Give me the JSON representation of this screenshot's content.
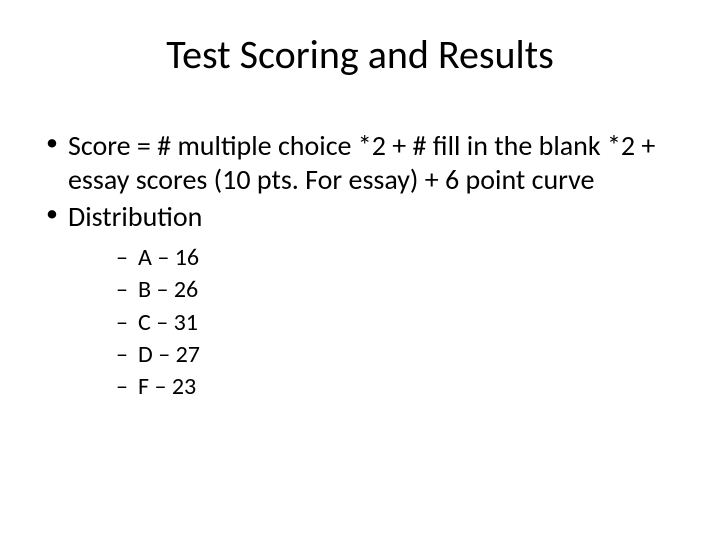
{
  "title": "Test Scoring and Results",
  "bullets": [
    {
      "text": "Score = # multiple choice *2 + # fill in the blank *2 + essay scores (10 pts. For essay) + 6 point curve"
    },
    {
      "text": "Distribution"
    }
  ],
  "distribution": [
    {
      "label": "A – 16"
    },
    {
      "label": "B – 26"
    },
    {
      "label": "C – 31"
    },
    {
      "label": "D – 27"
    },
    {
      "label": "F – 23"
    }
  ],
  "style": {
    "background_color": "#ffffff",
    "text_color": "#000000",
    "title_fontsize": 40,
    "body_fontsize": 28,
    "sub_fontsize": 24,
    "font_family": "Calibri"
  }
}
